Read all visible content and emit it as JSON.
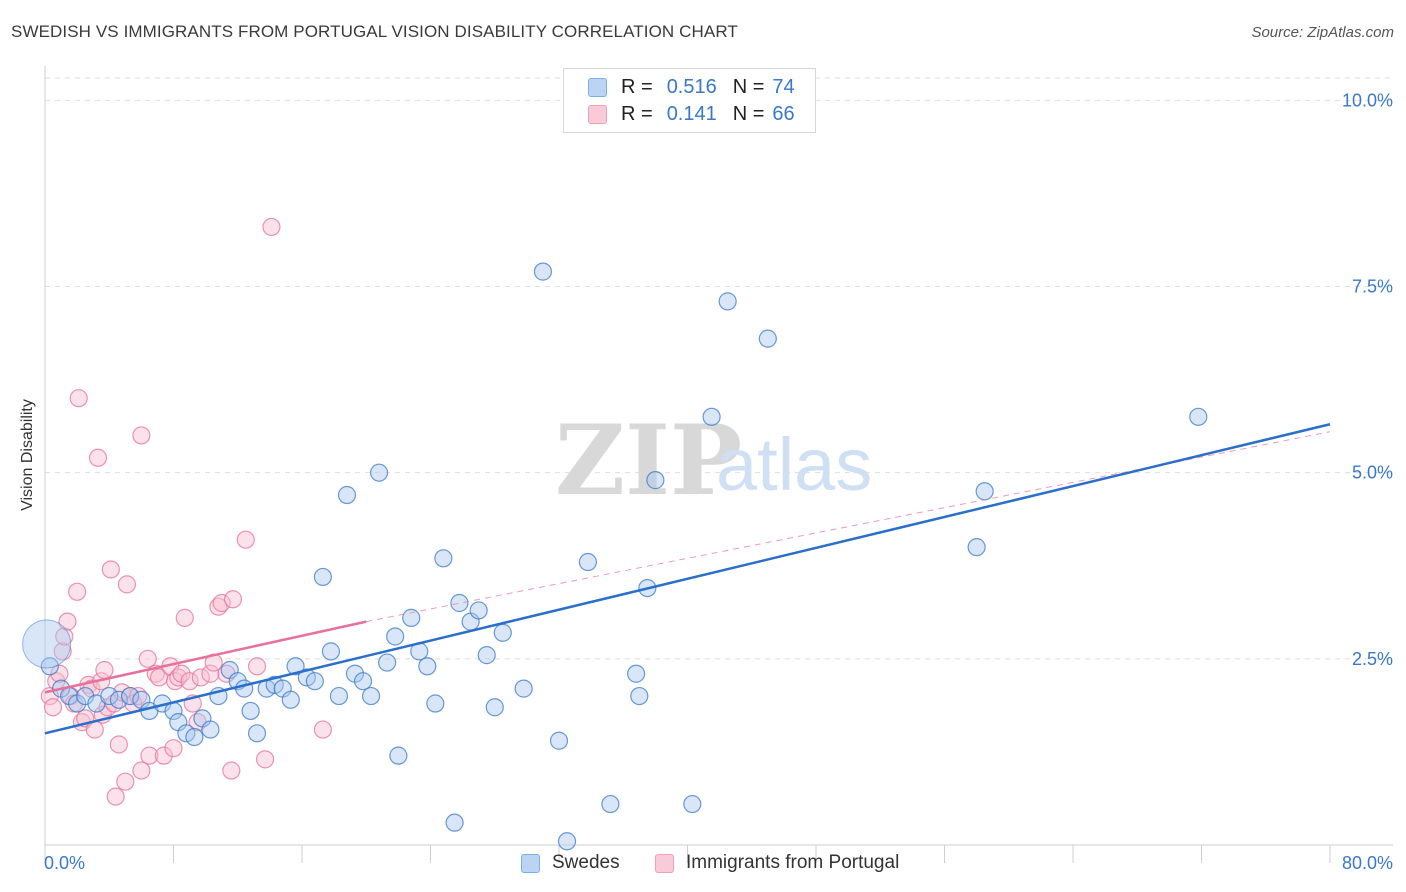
{
  "header": {
    "title": "SWEDISH VS IMMIGRANTS FROM PORTUGAL VISION DISABILITY CORRELATION CHART",
    "source": "Source: ZipAtlas.com"
  },
  "watermark": {
    "zip": "ZIP",
    "atlas": "atlas"
  },
  "legend": {
    "r_label": "R =",
    "n_label": "N =",
    "rows": [
      {
        "r": "0.516",
        "n": "74",
        "color": "#7eaee8",
        "fill": "#bcd4f4"
      },
      {
        "r": "0.141",
        "n": "66",
        "color": "#f0a0b8",
        "fill": "#f9cad8"
      }
    ]
  },
  "bottom_legend": [
    "Swedes",
    "Immigrants from Portugal"
  ],
  "chart_data": {
    "type": "scatter",
    "title": "SWEDISH VS IMMIGRANTS FROM PORTUGAL VISION DISABILITY CORRELATION CHART",
    "ylabel": "Vision Disability",
    "xlabel": "",
    "x_tick_labels": [
      "0.0%",
      "80.0%"
    ],
    "y_tick_labels": [
      "2.5%",
      "5.0%",
      "7.5%",
      "10.0%"
    ],
    "xlim": [
      0,
      80
    ],
    "ylim": [
      0,
      10.3
    ],
    "y_ticks": [
      2.5,
      5.0,
      7.5,
      10.0
    ],
    "grid": "horizontal dashed",
    "legend_position": "top-center",
    "series": [
      {
        "name": "Swedes",
        "color": "#3a78c9",
        "fill": "#a9c8ef",
        "trend": {
          "x0": 0,
          "y0": 1.5,
          "x1": 80,
          "y1": 5.65
        },
        "points": [
          [
            0.3,
            2.4
          ],
          [
            1.0,
            2.1
          ],
          [
            1.5,
            2.0
          ],
          [
            2.0,
            1.9
          ],
          [
            2.5,
            2.0
          ],
          [
            3.2,
            1.9
          ],
          [
            4.0,
            2.0
          ],
          [
            4.6,
            1.95
          ],
          [
            5.3,
            2.0
          ],
          [
            6.0,
            1.95
          ],
          [
            6.5,
            1.8
          ],
          [
            7.3,
            1.9
          ],
          [
            8.0,
            1.8
          ],
          [
            8.3,
            1.65
          ],
          [
            8.8,
            1.5
          ],
          [
            9.3,
            1.45
          ],
          [
            9.8,
            1.7
          ],
          [
            10.3,
            1.55
          ],
          [
            10.8,
            2.0
          ],
          [
            11.5,
            2.35
          ],
          [
            12.0,
            2.2
          ],
          [
            12.4,
            2.1
          ],
          [
            12.8,
            1.8
          ],
          [
            13.2,
            1.5
          ],
          [
            13.8,
            2.1
          ],
          [
            14.3,
            2.15
          ],
          [
            14.8,
            2.1
          ],
          [
            15.3,
            1.95
          ],
          [
            15.6,
            2.4
          ],
          [
            16.3,
            2.25
          ],
          [
            16.8,
            2.2
          ],
          [
            17.3,
            3.6
          ],
          [
            17.8,
            2.6
          ],
          [
            18.3,
            2.0
          ],
          [
            18.8,
            4.7
          ],
          [
            19.3,
            2.3
          ],
          [
            19.8,
            2.2
          ],
          [
            20.3,
            2.0
          ],
          [
            20.8,
            5.0
          ],
          [
            21.3,
            2.45
          ],
          [
            21.8,
            2.8
          ],
          [
            22.0,
            1.2
          ],
          [
            22.8,
            3.05
          ],
          [
            23.3,
            2.6
          ],
          [
            23.8,
            2.4
          ],
          [
            24.3,
            1.9
          ],
          [
            24.8,
            3.85
          ],
          [
            25.5,
            0.3
          ],
          [
            25.8,
            3.25
          ],
          [
            26.5,
            3.0
          ],
          [
            27.0,
            3.15
          ],
          [
            27.5,
            2.55
          ],
          [
            28.0,
            1.85
          ],
          [
            28.5,
            2.85
          ],
          [
            29.8,
            2.1
          ],
          [
            31.0,
            7.7
          ],
          [
            32.0,
            1.4
          ],
          [
            32.5,
            0.05
          ],
          [
            33.8,
            3.8
          ],
          [
            35.2,
            0.55
          ],
          [
            36.8,
            2.3
          ],
          [
            37.0,
            2.0
          ],
          [
            37.5,
            3.45
          ],
          [
            38.0,
            4.9
          ],
          [
            40.3,
            0.55
          ],
          [
            41.5,
            5.75
          ],
          [
            42.5,
            7.3
          ],
          [
            45.0,
            6.8
          ],
          [
            58.0,
            4.0
          ],
          [
            58.5,
            4.75
          ],
          [
            71.8,
            5.75
          ]
        ],
        "large_point": [
          0.1,
          2.7
        ]
      },
      {
        "name": "Immigrants from Portugal",
        "color": "#e8709a",
        "fill": "#f7bfd0",
        "trend": {
          "x0": 0,
          "y0": 2.05,
          "x1": 20,
          "y1": 3.0
        },
        "trend_extended": {
          "x0": 20,
          "y0": 3.0,
          "x1": 80,
          "y1": 5.55
        },
        "points": [
          [
            0.3,
            2.0
          ],
          [
            0.5,
            1.85
          ],
          [
            0.7,
            2.2
          ],
          [
            0.9,
            2.3
          ],
          [
            1.1,
            2.6
          ],
          [
            1.2,
            2.8
          ],
          [
            1.4,
            3.0
          ],
          [
            1.6,
            2.0
          ],
          [
            1.8,
            1.9
          ],
          [
            2.0,
            3.4
          ],
          [
            2.1,
            6.0
          ],
          [
            2.3,
            1.65
          ],
          [
            2.5,
            1.7
          ],
          [
            2.7,
            2.15
          ],
          [
            2.9,
            2.1
          ],
          [
            3.1,
            1.55
          ],
          [
            3.3,
            5.2
          ],
          [
            3.5,
            2.2
          ],
          [
            3.6,
            1.75
          ],
          [
            3.7,
            2.35
          ],
          [
            3.9,
            1.85
          ],
          [
            4.1,
            3.7
          ],
          [
            4.3,
            1.9
          ],
          [
            4.4,
            0.65
          ],
          [
            4.6,
            1.35
          ],
          [
            4.8,
            2.05
          ],
          [
            5.0,
            0.85
          ],
          [
            5.1,
            3.5
          ],
          [
            5.3,
            2.0
          ],
          [
            5.5,
            1.9
          ],
          [
            5.8,
            2.0
          ],
          [
            6.0,
            1.0
          ],
          [
            6.0,
            5.5
          ],
          [
            6.4,
            2.5
          ],
          [
            6.5,
            1.2
          ],
          [
            6.9,
            2.3
          ],
          [
            7.1,
            2.25
          ],
          [
            7.4,
            1.2
          ],
          [
            7.8,
            2.4
          ],
          [
            8.0,
            1.3
          ],
          [
            8.1,
            2.2
          ],
          [
            8.3,
            2.25
          ],
          [
            8.5,
            2.3
          ],
          [
            8.7,
            3.05
          ],
          [
            9.0,
            2.2
          ],
          [
            9.2,
            1.9
          ],
          [
            9.5,
            1.65
          ],
          [
            9.7,
            2.25
          ],
          [
            10.3,
            2.3
          ],
          [
            10.5,
            2.45
          ],
          [
            10.8,
            3.2
          ],
          [
            11.0,
            3.25
          ],
          [
            11.3,
            2.3
          ],
          [
            11.6,
            1.0
          ],
          [
            11.7,
            3.3
          ],
          [
            12.5,
            4.1
          ],
          [
            13.2,
            2.4
          ],
          [
            13.7,
            1.15
          ],
          [
            14.1,
            8.3
          ],
          [
            17.3,
            1.55
          ]
        ]
      }
    ]
  }
}
